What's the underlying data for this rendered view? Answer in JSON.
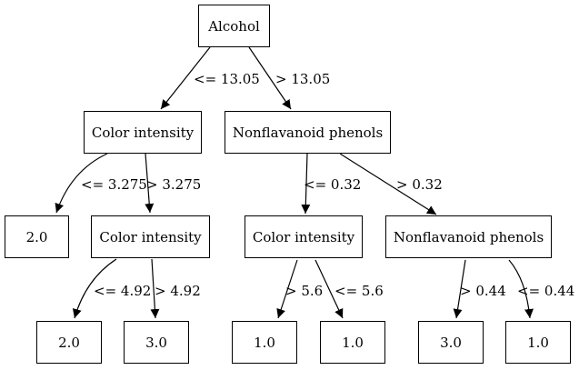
{
  "tree": {
    "nodes": [
      {
        "id": "root",
        "label": "Alcohol"
      },
      {
        "id": "l1",
        "label": "Color intensity"
      },
      {
        "id": "r1",
        "label": "Nonflavanoid phenols"
      },
      {
        "id": "leaf_a",
        "label": "2.0"
      },
      {
        "id": "l2",
        "label": "Color intensity"
      },
      {
        "id": "m2",
        "label": "Color intensity"
      },
      {
        "id": "r2",
        "label": "Nonflavanoid phenols"
      },
      {
        "id": "leaf_b",
        "label": "2.0"
      },
      {
        "id": "leaf_c",
        "label": "3.0"
      },
      {
        "id": "leaf_d",
        "label": "1.0"
      },
      {
        "id": "leaf_e",
        "label": "1.0"
      },
      {
        "id": "leaf_f",
        "label": "3.0"
      },
      {
        "id": "leaf_g",
        "label": "1.0"
      }
    ],
    "edges": [
      {
        "from": "root",
        "to": "l1",
        "label": "<= 13.05"
      },
      {
        "from": "root",
        "to": "r1",
        "label": "> 13.05"
      },
      {
        "from": "l1",
        "to": "leaf_a",
        "label": "<= 3.275"
      },
      {
        "from": "l1",
        "to": "l2",
        "label": "> 3.275"
      },
      {
        "from": "r1",
        "to": "m2",
        "label": "<= 0.32"
      },
      {
        "from": "r1",
        "to": "r2",
        "label": "> 0.32"
      },
      {
        "from": "l2",
        "to": "leaf_b",
        "label": "<= 4.92"
      },
      {
        "from": "l2",
        "to": "leaf_c",
        "label": "> 4.92"
      },
      {
        "from": "m2",
        "to": "leaf_d",
        "label": "> 5.6"
      },
      {
        "from": "m2",
        "to": "leaf_e",
        "label": "<= 5.6"
      },
      {
        "from": "r2",
        "to": "leaf_f",
        "label": "> 0.44"
      },
      {
        "from": "r2",
        "to": "leaf_g",
        "label": "<= 0.44"
      }
    ]
  }
}
